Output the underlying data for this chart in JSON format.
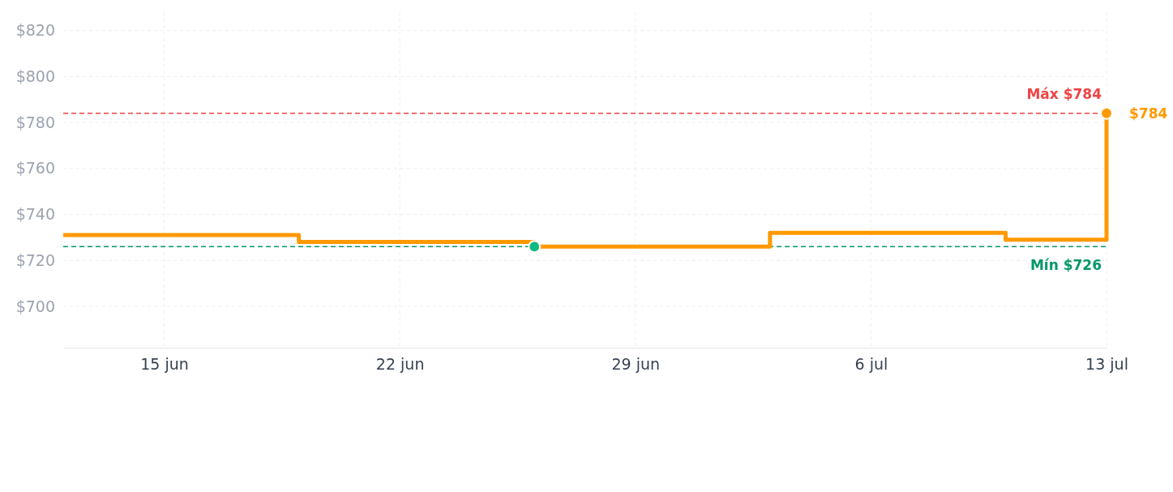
{
  "chart_data": {
    "type": "step",
    "xlim": [
      "--06-12",
      "--07-13"
    ],
    "ylim": [
      682,
      828
    ],
    "xticks": [
      {
        "value": "--06-15",
        "label": "15 jun"
      },
      {
        "value": "--06-22",
        "label": "22 jun"
      },
      {
        "value": "--06-29",
        "label": "29 jun"
      },
      {
        "value": "--07-06",
        "label": "6 jul"
      },
      {
        "value": "--07-13",
        "label": "13 jul"
      }
    ],
    "yticks": [
      {
        "value": 700,
        "label": "$700"
      },
      {
        "value": 720,
        "label": "$720"
      },
      {
        "value": 740,
        "label": "$740"
      },
      {
        "value": 760,
        "label": "$760"
      },
      {
        "value": 780,
        "label": "$780"
      },
      {
        "value": 800,
        "label": "$800"
      },
      {
        "value": 820,
        "label": "$820"
      }
    ],
    "grid": true,
    "line_style": "solid",
    "series": [
      {
        "color": "#ff9900",
        "marker": "none",
        "x": [
          "--06-12",
          "--06-19",
          "--06-26",
          "--07-03",
          "--07-10",
          "--07-13"
        ],
        "values": [
          731,
          728,
          726,
          732,
          729,
          784
        ]
      },
      {
        "type": "scatter",
        "color": "#10b981",
        "marker": "circle",
        "x": [
          "--06-26"
        ],
        "values": [
          726
        ]
      },
      {
        "type": "scatter",
        "color": "#ff9900",
        "marker": "circle",
        "x": [
          "--07-13"
        ],
        "values": [
          784
        ]
      }
    ],
    "ref_lines": [
      {
        "axis": "y",
        "value": 784,
        "label": "Máx $784",
        "color": "#ef4444",
        "line_style": "dashed"
      },
      {
        "axis": "y",
        "value": 726,
        "label": "Mín $726",
        "color": "#059669",
        "line_style": "dashed"
      }
    ],
    "annotations": [
      {
        "text": "$784",
        "x": "--07-13",
        "y": 784
      }
    ]
  }
}
